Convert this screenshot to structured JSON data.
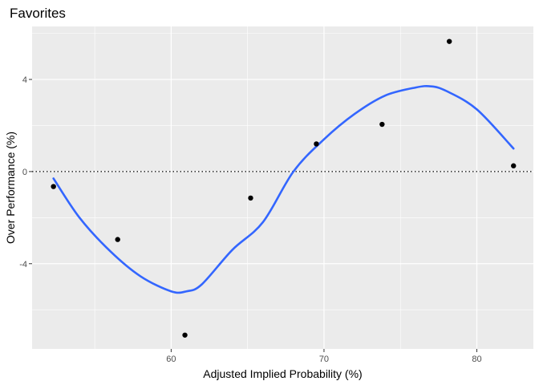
{
  "chart_data": {
    "type": "scatter",
    "title": "Favorites",
    "xlabel": "Adjusted Implied Probability (%)",
    "ylabel": "Over Performance (%)",
    "xlim": [
      50.9,
      83.7
    ],
    "ylim": [
      -7.7,
      6.3
    ],
    "x_ticks": [
      60,
      70,
      80
    ],
    "y_ticks": [
      -4,
      0,
      4
    ],
    "x_tick_labels": [
      "60",
      "70",
      "80"
    ],
    "y_tick_labels": [
      "-4",
      "0",
      "4"
    ],
    "grid": true,
    "reference_line": {
      "y": 0,
      "style": "dotted"
    },
    "points": [
      {
        "x": 52.3,
        "y": -0.65
      },
      {
        "x": 56.5,
        "y": -2.95
      },
      {
        "x": 60.9,
        "y": -7.1
      },
      {
        "x": 65.2,
        "y": -1.15
      },
      {
        "x": 69.5,
        "y": 1.2
      },
      {
        "x": 73.8,
        "y": 2.05
      },
      {
        "x": 78.2,
        "y": 5.65
      },
      {
        "x": 82.4,
        "y": 0.25
      }
    ],
    "smooth": [
      {
        "x": 52.3,
        "y": -0.3
      },
      {
        "x": 54.0,
        "y": -2.0
      },
      {
        "x": 56.0,
        "y": -3.45
      },
      {
        "x": 58.0,
        "y": -4.55
      },
      {
        "x": 60.0,
        "y": -5.2
      },
      {
        "x": 61.0,
        "y": -5.2
      },
      {
        "x": 62.0,
        "y": -4.9
      },
      {
        "x": 64.0,
        "y": -3.4
      },
      {
        "x": 66.0,
        "y": -2.2
      },
      {
        "x": 68.0,
        "y": 0.0
      },
      {
        "x": 70.0,
        "y": 1.4
      },
      {
        "x": 72.0,
        "y": 2.5
      },
      {
        "x": 74.0,
        "y": 3.3
      },
      {
        "x": 76.0,
        "y": 3.65
      },
      {
        "x": 77.0,
        "y": 3.7
      },
      {
        "x": 78.0,
        "y": 3.5
      },
      {
        "x": 80.0,
        "y": 2.7
      },
      {
        "x": 82.4,
        "y": 1.0
      }
    ],
    "colors": {
      "panel": "#ebebeb",
      "grid_major": "#ffffff",
      "point": "#000000",
      "smooth": "#3366ff",
      "reference": "#000000"
    }
  }
}
